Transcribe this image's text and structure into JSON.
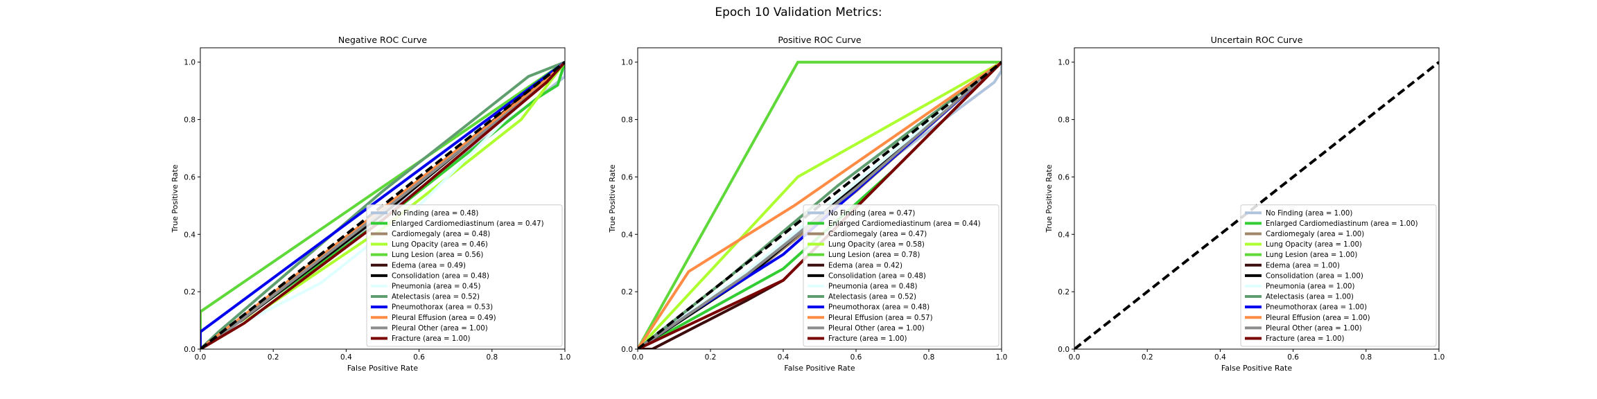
{
  "suptitle": "Epoch 10 Validation Metrics:",
  "colors": {
    "No Finding": "#b0c4de",
    "Enlarged Cardiomediastinum": "#32cd32",
    "Cardiomegaly": "#a0866a",
    "Lung Opacity": "#adff2f",
    "Lung Lesion": "#5fd93a",
    "Edema": "#3d0c0c",
    "Consolidation": "#000000",
    "Pneumonia": "#e0ffff",
    "Atelectasis": "#5f9e6e",
    "Pneumothorax": "#0000ee",
    "Pleural Effusion": "#ff8c45",
    "Pleural Other": "#8c8c8c",
    "Fracture": "#7a0000"
  },
  "chart_data": [
    {
      "type": "line",
      "title": "Negative ROC Curve",
      "xlabel": "False Positive Rate",
      "ylabel": "True Positive Rate",
      "xlim": [
        0,
        1
      ],
      "ylim": [
        0,
        1.05
      ],
      "xticks": [
        "0.0",
        "0.2",
        "0.4",
        "0.6",
        "0.8",
        "1.0"
      ],
      "yticks": [
        "0.0",
        "0.2",
        "0.4",
        "0.6",
        "0.8",
        "1.0"
      ],
      "legend_position": "lower-right",
      "series": [
        {
          "name": "No Finding",
          "label": "No Finding (area = 0.48)",
          "x": [
            0,
            0.03,
            0.5,
            0.95,
            1.0,
            1.0
          ],
          "y": [
            0,
            0.03,
            0.46,
            0.9,
            0.95,
            1.0
          ]
        },
        {
          "name": "Enlarged Cardiomediastinum",
          "label": "Enlarged Cardiomediastinum (area = 0.47)",
          "x": [
            0,
            0.03,
            0.5,
            0.93,
            0.98,
            1.0
          ],
          "y": [
            0,
            0.03,
            0.45,
            0.88,
            0.92,
            1.0
          ]
        },
        {
          "name": "Cardiomegaly",
          "label": "Cardiomegaly (area = 0.48)",
          "x": [
            0,
            0.05,
            0.5,
            0.95,
            1.0
          ],
          "y": [
            0,
            0.04,
            0.47,
            0.94,
            1.0
          ]
        },
        {
          "name": "Lung Opacity",
          "label": "Lung Opacity (area = 0.46)",
          "x": [
            0,
            0.08,
            0.5,
            0.88,
            1.0
          ],
          "y": [
            0,
            0.06,
            0.42,
            0.8,
            1.0
          ]
        },
        {
          "name": "Lung Lesion",
          "label": "Lung Lesion (area = 0.56)",
          "x": [
            0,
            0.0,
            1.0
          ],
          "y": [
            0,
            0.13,
            1.0
          ]
        },
        {
          "name": "Edema",
          "label": "Edema (area = 0.49)",
          "x": [
            0,
            0.04,
            0.5,
            0.96,
            1.0
          ],
          "y": [
            0,
            0.03,
            0.48,
            0.96,
            1.0
          ]
        },
        {
          "name": "Consolidation",
          "label": "Consolidation (area = 0.48)",
          "x": [
            0,
            0.05,
            0.5,
            0.96,
            1.0
          ],
          "y": [
            0,
            0.04,
            0.47,
            0.95,
            1.0
          ]
        },
        {
          "name": "Pneumonia",
          "label": "Pneumonia (area = 0.45)",
          "x": [
            0,
            0.1,
            0.33,
            0.6,
            0.9,
            1.0
          ],
          "y": [
            0,
            0.08,
            0.23,
            0.5,
            0.88,
            1.0
          ]
        },
        {
          "name": "Atelectasis",
          "label": "Atelectasis (area = 0.52)",
          "x": [
            0,
            0.05,
            0.5,
            0.9,
            1.0
          ],
          "y": [
            0,
            0.06,
            0.55,
            0.95,
            1.0
          ]
        },
        {
          "name": "Pneumothorax",
          "label": "Pneumothorax (area = 0.53)",
          "x": [
            0,
            0.0,
            1.0
          ],
          "y": [
            0,
            0.06,
            1.0
          ]
        },
        {
          "name": "Pleural Effusion",
          "label": "Pleural Effusion (area = 0.49)",
          "x": [
            0,
            0.05,
            0.5,
            0.95,
            1.0
          ],
          "y": [
            0,
            0.05,
            0.49,
            0.94,
            1.0
          ]
        },
        {
          "name": "Pleural Other",
          "label": "Pleural Other (area = 1.00)",
          "x": [
            0,
            0.05,
            0.5,
            0.95,
            1.0
          ],
          "y": [
            0,
            0.04,
            0.48,
            0.93,
            1.0
          ]
        },
        {
          "name": "Fracture",
          "label": "Fracture (area = 1.00)",
          "x": [
            0,
            0.12,
            0.5,
            0.95,
            1.0
          ],
          "y": [
            0,
            0.09,
            0.45,
            0.93,
            1.0
          ]
        }
      ],
      "reference_line": {
        "x": [
          0,
          1
        ],
        "y": [
          0,
          1
        ],
        "style": "dashed",
        "color": "#000000"
      }
    },
    {
      "type": "line",
      "title": "Positive ROC Curve",
      "xlabel": "False Positive Rate",
      "ylabel": "True Positive Rate",
      "xlim": [
        0,
        1
      ],
      "ylim": [
        0,
        1.05
      ],
      "xticks": [
        "0.0",
        "0.2",
        "0.4",
        "0.6",
        "0.8",
        "1.0"
      ],
      "yticks": [
        "0.0",
        "0.2",
        "0.4",
        "0.6",
        "0.8",
        "1.0"
      ],
      "legend_position": "lower-right",
      "series": [
        {
          "name": "No Finding",
          "label": "No Finding (area = 0.47)",
          "x": [
            0,
            0.3,
            0.6,
            0.98,
            1.0,
            1.0
          ],
          "y": [
            0,
            0.27,
            0.57,
            0.93,
            0.97,
            1.0
          ]
        },
        {
          "name": "Enlarged Cardiomediastinum",
          "label": "Enlarged Cardiomediastinum (area = 0.44)",
          "x": [
            0,
            0.1,
            0.4,
            0.7,
            1.0
          ],
          "y": [
            0,
            0.07,
            0.28,
            0.62,
            1.0
          ]
        },
        {
          "name": "Cardiomegaly",
          "label": "Cardiomegaly (area = 0.47)",
          "x": [
            0,
            0.35,
            0.6,
            1.0
          ],
          "y": [
            0,
            0.3,
            0.55,
            1.0
          ]
        },
        {
          "name": "Lung Opacity",
          "label": "Lung Opacity (area = 0.58)",
          "x": [
            0,
            0.44,
            1.0
          ],
          "y": [
            0,
            0.6,
            1.0
          ]
        },
        {
          "name": "Lung Lesion",
          "label": "Lung Lesion (area = 0.78)",
          "x": [
            0,
            0.44,
            1.0
          ],
          "y": [
            0,
            1.0,
            1.0
          ]
        },
        {
          "name": "Edema",
          "label": "Edema (area = 0.42)",
          "x": [
            0,
            0.04,
            0.3,
            0.4,
            1.0
          ],
          "y": [
            0,
            0.0,
            0.17,
            0.24,
            1.0
          ]
        },
        {
          "name": "Consolidation",
          "label": "Consolidation (area = 0.48)",
          "x": [
            0,
            0.3,
            0.6,
            1.0
          ],
          "y": [
            0,
            0.25,
            0.57,
            1.0
          ]
        },
        {
          "name": "Pneumonia",
          "label": "Pneumonia (area = 0.48)",
          "x": [
            0,
            0.3,
            0.6,
            1.0
          ],
          "y": [
            0,
            0.27,
            0.58,
            1.0
          ]
        },
        {
          "name": "Atelectasis",
          "label": "Atelectasis (area = 0.52)",
          "x": [
            0,
            0.25,
            0.55,
            1.0
          ],
          "y": [
            0,
            0.25,
            0.57,
            1.0
          ]
        },
        {
          "name": "Pneumothorax",
          "label": "Pneumothorax (area = 0.48)",
          "x": [
            0,
            0.15,
            0.4,
            1.0
          ],
          "y": [
            0,
            0.13,
            0.33,
            1.0
          ]
        },
        {
          "name": "Pleural Effusion",
          "label": "Pleural Effusion (area = 0.57)",
          "x": [
            0,
            0.14,
            0.43,
            1.0
          ],
          "y": [
            0,
            0.27,
            0.5,
            1.0
          ]
        },
        {
          "name": "Pleural Other",
          "label": "Pleural Other (area = 1.00)",
          "x": [
            0,
            0.3,
            0.6,
            1.0
          ],
          "y": [
            0,
            0.26,
            0.56,
            1.0
          ]
        },
        {
          "name": "Fracture",
          "label": "Fracture (area = 1.00)",
          "x": [
            0,
            0.1,
            0.3,
            0.4,
            1.0
          ],
          "y": [
            0,
            0.06,
            0.18,
            0.24,
            1.0
          ]
        }
      ],
      "reference_line": {
        "x": [
          0,
          1
        ],
        "y": [
          0,
          1
        ],
        "style": "dashed",
        "color": "#000000"
      }
    },
    {
      "type": "line",
      "title": "Uncertain ROC Curve",
      "xlabel": "False Positive Rate",
      "ylabel": "True Positive Rate",
      "xlim": [
        0,
        1
      ],
      "ylim": [
        0,
        1.05
      ],
      "xticks": [
        "0.0",
        "0.2",
        "0.4",
        "0.6",
        "0.8",
        "1.0"
      ],
      "yticks": [
        "0.0",
        "0.2",
        "0.4",
        "0.6",
        "0.8",
        "1.0"
      ],
      "legend_position": "lower-right",
      "series": [
        {
          "name": "No Finding",
          "label": "No Finding (area = 1.00)",
          "x": [],
          "y": []
        },
        {
          "name": "Enlarged Cardiomediastinum",
          "label": "Enlarged Cardiomediastinum (area = 1.00)",
          "x": [],
          "y": []
        },
        {
          "name": "Cardiomegaly",
          "label": "Cardiomegaly (area = 1.00)",
          "x": [],
          "y": []
        },
        {
          "name": "Lung Opacity",
          "label": "Lung Opacity (area = 1.00)",
          "x": [],
          "y": []
        },
        {
          "name": "Lung Lesion",
          "label": "Lung Lesion (area = 1.00)",
          "x": [],
          "y": []
        },
        {
          "name": "Edema",
          "label": "Edema (area = 1.00)",
          "x": [],
          "y": []
        },
        {
          "name": "Consolidation",
          "label": "Consolidation (area = 1.00)",
          "x": [],
          "y": []
        },
        {
          "name": "Pneumonia",
          "label": "Pneumonia (area = 1.00)",
          "x": [],
          "y": []
        },
        {
          "name": "Atelectasis",
          "label": "Atelectasis (area = 1.00)",
          "x": [],
          "y": []
        },
        {
          "name": "Pneumothorax",
          "label": "Pneumothorax (area = 1.00)",
          "x": [],
          "y": []
        },
        {
          "name": "Pleural Effusion",
          "label": "Pleural Effusion (area = 1.00)",
          "x": [],
          "y": []
        },
        {
          "name": "Pleural Other",
          "label": "Pleural Other (area = 1.00)",
          "x": [],
          "y": []
        },
        {
          "name": "Fracture",
          "label": "Fracture (area = 1.00)",
          "x": [],
          "y": []
        }
      ],
      "reference_line": {
        "x": [
          0,
          1
        ],
        "y": [
          0,
          1
        ],
        "style": "dashed",
        "color": "#000000"
      }
    }
  ]
}
